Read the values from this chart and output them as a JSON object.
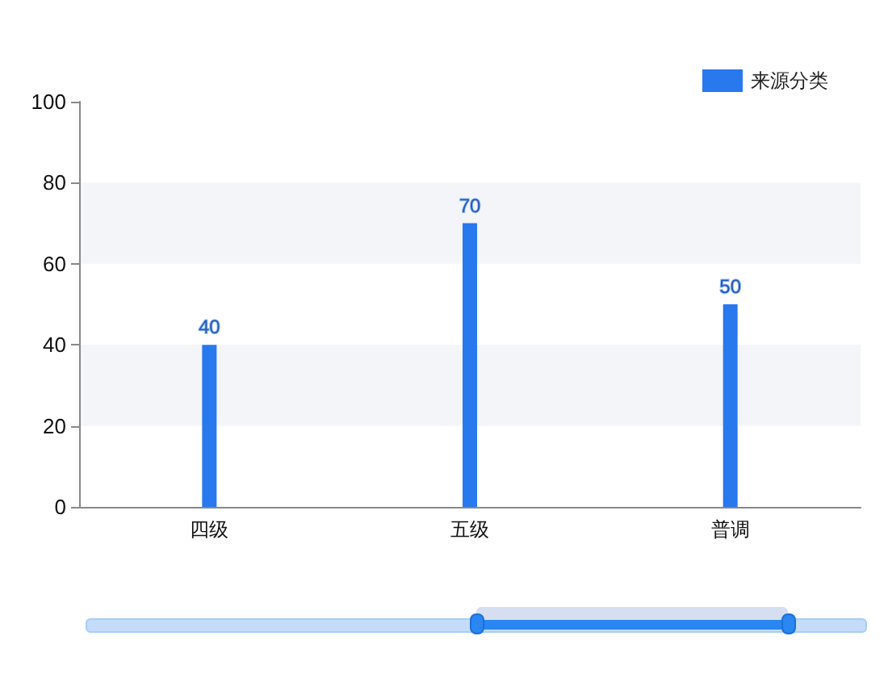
{
  "chart_data": {
    "type": "bar",
    "categories": [
      "四级",
      "五级",
      "普调"
    ],
    "series": [
      {
        "name": "来源分类",
        "color": "#2878ee",
        "values": [
          40,
          70,
          50
        ]
      }
    ],
    "ylim": [
      0,
      100
    ],
    "yticks": [
      0,
      20,
      40,
      60,
      80,
      100
    ],
    "bands": [
      {
        "axis": "y",
        "from": 20,
        "to": 40,
        "color": "#f3f5f9"
      },
      {
        "axis": "y",
        "from": 60,
        "to": 80,
        "color": "#f3f5f9"
      }
    ],
    "legend": "top right",
    "data_labels": true
  }
}
